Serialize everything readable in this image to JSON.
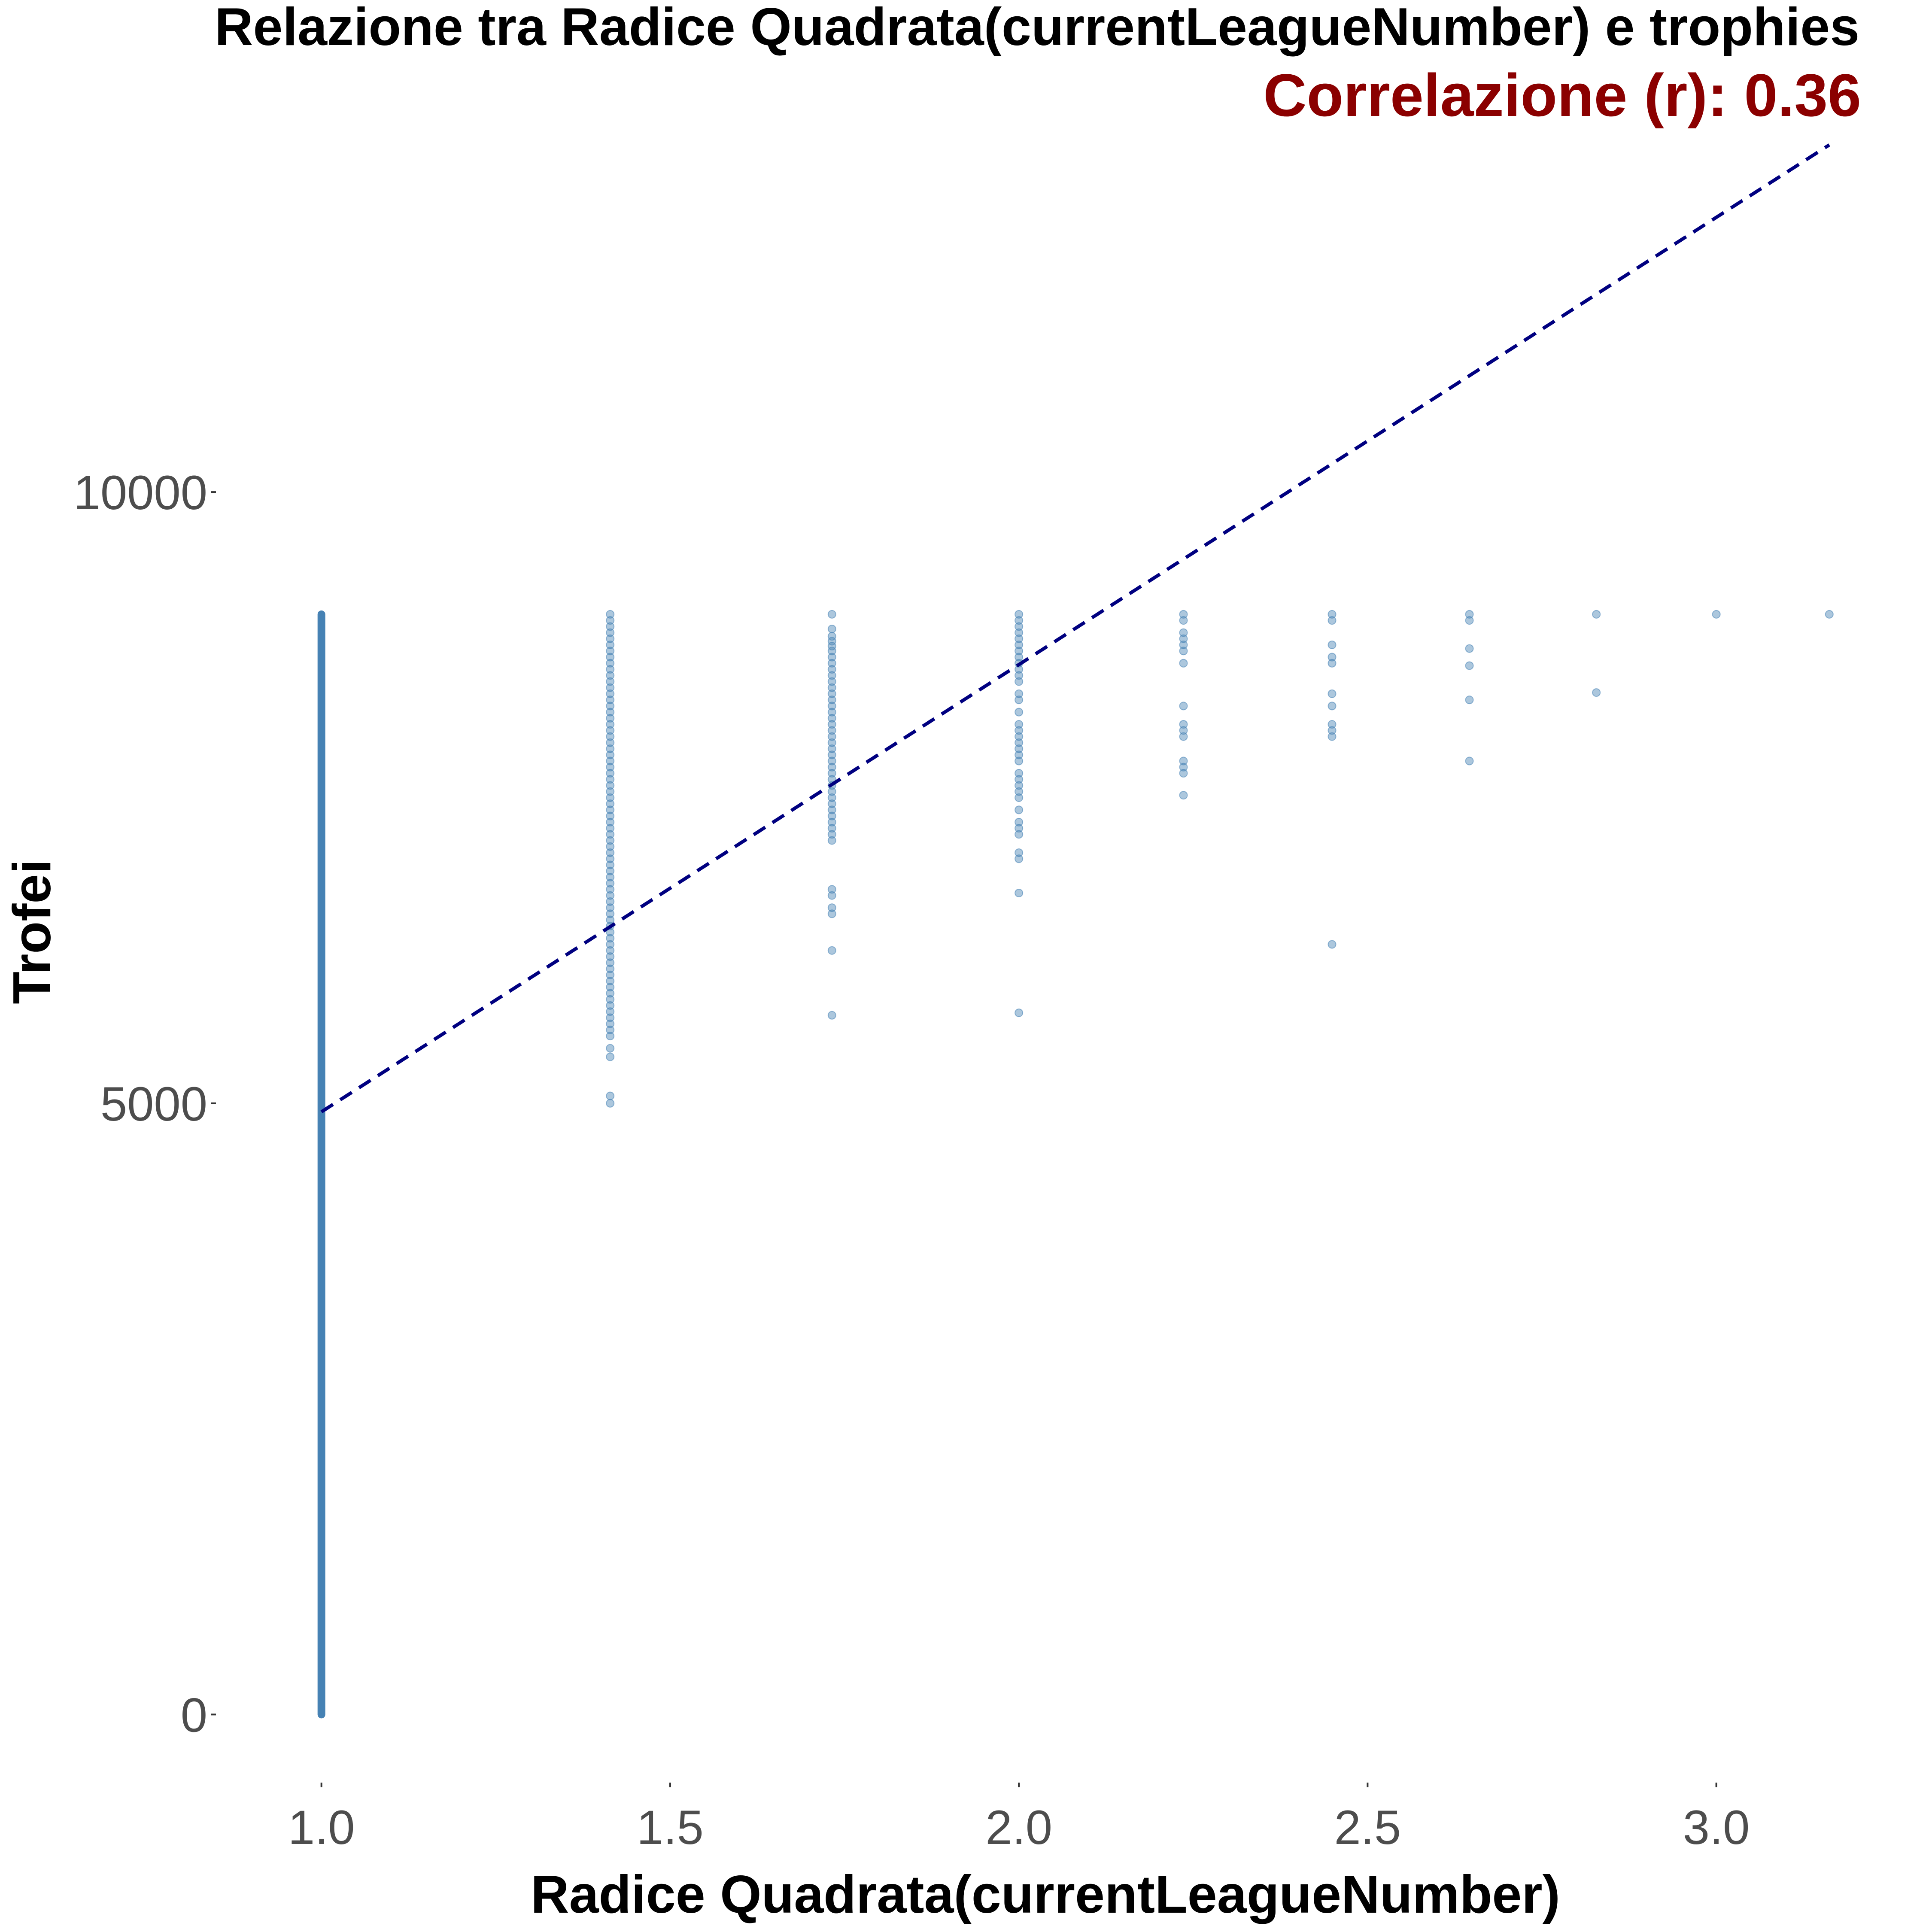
{
  "chart_data": {
    "type": "scatter",
    "title": "Relazione tra Radice Quadrata(currentLeagueNumber) e trophies",
    "subtitle": "Correlazione (r): 0.36",
    "xlabel": "Radice Quadrata(currentLeagueNumber)",
    "ylabel": "Trofei",
    "xlim": [
      0.85,
      3.22
    ],
    "ylim": [
      -550,
      13200
    ],
    "x_ticks": [
      1.0,
      1.5,
      2.0,
      2.5,
      3.0
    ],
    "x_tick_labels": [
      "1.0",
      "1.5",
      "2.0",
      "2.5",
      "3.0"
    ],
    "y_ticks": [
      0,
      5000,
      10000
    ],
    "y_tick_labels": [
      "0",
      "5000",
      "10000"
    ],
    "grid": false,
    "legend": "none",
    "colors": {
      "points": "#4682b4",
      "trend_line": "#000080",
      "subtitle": "#8b0000",
      "tick_labels": "#4d4d4d"
    },
    "series": [
      {
        "style": "band",
        "x": 1.0,
        "y_range": [
          0,
          9000
        ]
      },
      {
        "style": "points",
        "x": 1.414,
        "y": [
          9000,
          8950,
          8900,
          8850,
          8800,
          8750,
          8700,
          8650,
          8600,
          8550,
          8500,
          8450,
          8400,
          8350,
          8300,
          8250,
          8200,
          8150,
          8100,
          8050,
          8000,
          7950,
          7900,
          7850,
          7800,
          7750,
          7700,
          7650,
          7600,
          7550,
          7500,
          7450,
          7400,
          7350,
          7300,
          7250,
          7200,
          7150,
          7100,
          7050,
          7000,
          6950,
          6900,
          6850,
          6800,
          6750,
          6700,
          6650,
          6600,
          6550,
          6500,
          6450,
          6400,
          6350,
          6300,
          6250,
          6200,
          6150,
          6100,
          6050,
          6000,
          5950,
          5900,
          5850,
          5800,
          5750,
          5700,
          5650,
          5600,
          5550,
          5450,
          5380,
          5060,
          5000
        ]
      },
      {
        "style": "points",
        "x": 1.732,
        "y": [
          9000,
          8880,
          8820,
          8780,
          8740,
          8700,
          8650,
          8600,
          8550,
          8500,
          8450,
          8400,
          8350,
          8300,
          8250,
          8200,
          8150,
          8100,
          8050,
          8000,
          7950,
          7900,
          7850,
          7800,
          7750,
          7700,
          7650,
          7600,
          7550,
          7500,
          7450,
          7400,
          7350,
          7300,
          7250,
          7200,
          7150,
          6750,
          6700,
          6600,
          6550,
          6250,
          5720
        ]
      },
      {
        "style": "points",
        "x": 2.0,
        "y": [
          9000,
          8950,
          8900,
          8850,
          8800,
          8750,
          8700,
          8650,
          8600,
          8550,
          8500,
          8450,
          8350,
          8300,
          8200,
          8100,
          8050,
          8000,
          7950,
          7900,
          7850,
          7800,
          7700,
          7650,
          7600,
          7550,
          7500,
          7400,
          7300,
          7250,
          7200,
          7050,
          7000,
          6720,
          5740
        ]
      },
      {
        "style": "points",
        "x": 2.236,
        "y": [
          9000,
          8950,
          8850,
          8800,
          8750,
          8700,
          8600,
          8250,
          8100,
          8050,
          8000,
          7800,
          7750,
          7700,
          7520
        ]
      },
      {
        "style": "points",
        "x": 2.449,
        "y": [
          9000,
          8950,
          8750,
          8650,
          8600,
          8350,
          8250,
          8100,
          8050,
          8000,
          6300
        ]
      },
      {
        "style": "points",
        "x": 2.646,
        "y": [
          9000,
          8950,
          8720,
          8580,
          8300,
          7800
        ]
      },
      {
        "style": "points",
        "x": 2.828,
        "y": [
          9000,
          8360
        ]
      },
      {
        "style": "points",
        "x": 3.0,
        "y": [
          9000
        ]
      },
      {
        "style": "points",
        "x": 3.162,
        "y": [
          9000
        ]
      }
    ],
    "trend_line": {
      "style": "dashed",
      "x": [
        1.0,
        3.162
      ],
      "y": [
        4930,
        12840
      ]
    }
  }
}
